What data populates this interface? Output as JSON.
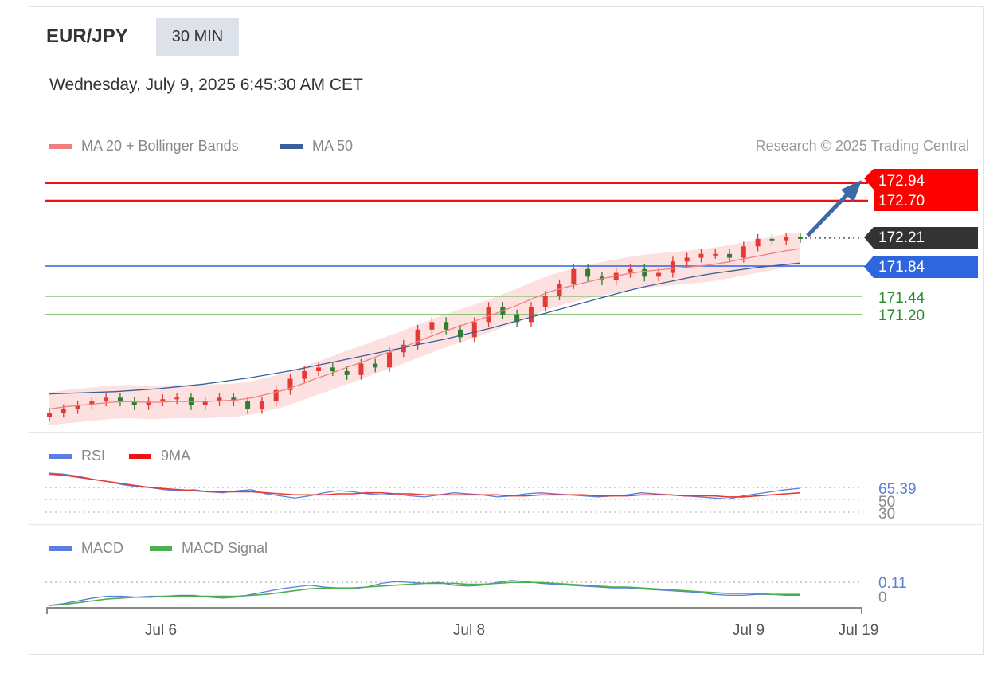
{
  "header": {
    "symbol": "EUR/JPY",
    "timeframe": "30 MIN",
    "datetime": "Wednesday, July 9, 2025 6:45:30 AM CET"
  },
  "legend": {
    "ma20": "MA 20 + Bollinger Bands",
    "ma50": "MA 50",
    "rsi": "RSI",
    "rsi_ma": "9MA",
    "macd": "MACD",
    "macd_signal": "MACD Signal"
  },
  "credit": "Research © 2025 Trading Central",
  "colors": {
    "resistance": "#ee1111",
    "current": "#333333",
    "pivot": "#2e66e0",
    "support": "#8cc47a",
    "ma20": "#f08080",
    "ma50": "#3a5e9c",
    "bands": "#fde0e0",
    "bull": "#e53935",
    "bear": "#2e7d32",
    "rsi": "#5b7fe0",
    "macd": "#5b7fe0",
    "signal": "#4caf50"
  },
  "chart_data": {
    "type": "line",
    "price_levels": [
      {
        "label": "172.94",
        "value": 172.94,
        "kind": "resistance"
      },
      {
        "label": "172.70",
        "value": 172.7,
        "kind": "resistance"
      },
      {
        "label": "172.21",
        "value": 172.21,
        "kind": "current"
      },
      {
        "label": "171.84",
        "value": 171.84,
        "kind": "pivot"
      },
      {
        "label": "171.44",
        "value": 171.44,
        "kind": "support"
      },
      {
        "label": "171.20",
        "value": 171.2,
        "kind": "support"
      }
    ],
    "x_ticks": [
      "Jul 6",
      "Jul 8",
      "Jul 9",
      "Jul 19"
    ],
    "price_close": [
      169.9,
      169.95,
      170.0,
      170.05,
      170.1,
      170.05,
      170.0,
      170.05,
      170.08,
      170.1,
      170.0,
      170.05,
      170.1,
      170.05,
      169.95,
      170.05,
      170.2,
      170.35,
      170.45,
      170.5,
      170.45,
      170.4,
      170.55,
      170.5,
      170.7,
      170.8,
      171.0,
      171.1,
      171.0,
      170.9,
      171.1,
      171.3,
      171.2,
      171.1,
      171.3,
      171.45,
      171.6,
      171.8,
      171.7,
      171.65,
      171.75,
      171.8,
      171.7,
      171.75,
      171.9,
      171.95,
      172.0,
      172.0,
      171.95,
      172.1,
      172.2,
      172.18,
      172.22,
      172.21
    ],
    "ma20": [
      169.95,
      169.98,
      170.0,
      170.02,
      170.04,
      170.05,
      170.04,
      170.04,
      170.05,
      170.05,
      170.05,
      170.06,
      170.07,
      170.1,
      170.15,
      170.2,
      170.27,
      170.35,
      170.42,
      170.5,
      170.57,
      170.65,
      170.72,
      170.8,
      170.88,
      170.96,
      171.03,
      171.1,
      171.17,
      171.25,
      171.33,
      171.42,
      171.5,
      171.56,
      171.61,
      171.66,
      171.7,
      171.74,
      171.77,
      171.79,
      171.81,
      171.83,
      171.85,
      171.88,
      171.92,
      171.96,
      172.0,
      172.04,
      172.07
    ],
    "ma50": [
      170.15,
      170.16,
      170.17,
      170.18,
      170.2,
      170.22,
      170.25,
      170.28,
      170.32,
      170.36,
      170.41,
      170.46,
      170.52,
      170.58,
      170.64,
      170.7,
      170.76,
      170.82,
      170.88,
      170.95,
      171.02,
      171.1,
      171.18,
      171.26,
      171.34,
      171.42,
      171.5,
      171.57,
      171.63,
      171.69,
      171.74,
      171.78,
      171.82,
      171.85,
      171.88
    ],
    "rsi": {
      "current": "65.39",
      "levels": [
        "50",
        "30"
      ],
      "values": [
        80,
        79,
        77,
        74,
        72,
        69,
        67,
        66,
        64,
        63,
        64,
        62,
        61,
        63,
        64,
        60,
        58,
        56,
        58,
        61,
        63,
        62,
        60,
        59,
        60,
        58,
        57,
        59,
        61,
        60,
        59,
        57,
        58,
        60,
        61,
        60,
        59,
        58,
        57,
        58,
        59,
        61,
        60,
        59,
        58,
        57,
        56,
        55,
        58,
        60,
        62,
        64,
        65.39
      ]
    },
    "rsi_ma": [
      79,
      78,
      76,
      74,
      72,
      70,
      68,
      66,
      65,
      64,
      63,
      62,
      62,
      62,
      62,
      61,
      60,
      59,
      59,
      59,
      60,
      60,
      61,
      61,
      60,
      60,
      59,
      59,
      59,
      59,
      59,
      59,
      58,
      58,
      59,
      59,
      59,
      59,
      58,
      58,
      58,
      59,
      59,
      59,
      58,
      58,
      58,
      57,
      57,
      58,
      59,
      60,
      61
    ],
    "macd": {
      "current": "0.11",
      "levels": [
        "0"
      ],
      "values": [
        0.0,
        0.02,
        0.05,
        0.08,
        0.1,
        0.1,
        0.09,
        0.1,
        0.1,
        0.11,
        0.11,
        0.09,
        0.08,
        0.09,
        0.12,
        0.15,
        0.18,
        0.2,
        0.22,
        0.2,
        0.19,
        0.18,
        0.2,
        0.24,
        0.26,
        0.25,
        0.24,
        0.25,
        0.22,
        0.21,
        0.22,
        0.25,
        0.27,
        0.26,
        0.24,
        0.23,
        0.22,
        0.21,
        0.2,
        0.19,
        0.19,
        0.18,
        0.17,
        0.16,
        0.15,
        0.14,
        0.12,
        0.11,
        0.11,
        0.12,
        0.12,
        0.11,
        0.11
      ]
    },
    "macd_signal": [
      0.0,
      0.01,
      0.03,
      0.05,
      0.07,
      0.08,
      0.09,
      0.09,
      0.1,
      0.1,
      0.1,
      0.1,
      0.1,
      0.1,
      0.11,
      0.12,
      0.14,
      0.16,
      0.18,
      0.19,
      0.19,
      0.19,
      0.2,
      0.21,
      0.22,
      0.23,
      0.24,
      0.24,
      0.24,
      0.23,
      0.23,
      0.24,
      0.25,
      0.25,
      0.25,
      0.24,
      0.23,
      0.22,
      0.21,
      0.2,
      0.2,
      0.19,
      0.18,
      0.17,
      0.16,
      0.15,
      0.14,
      0.13,
      0.13,
      0.13,
      0.12,
      0.12,
      0.12
    ]
  }
}
